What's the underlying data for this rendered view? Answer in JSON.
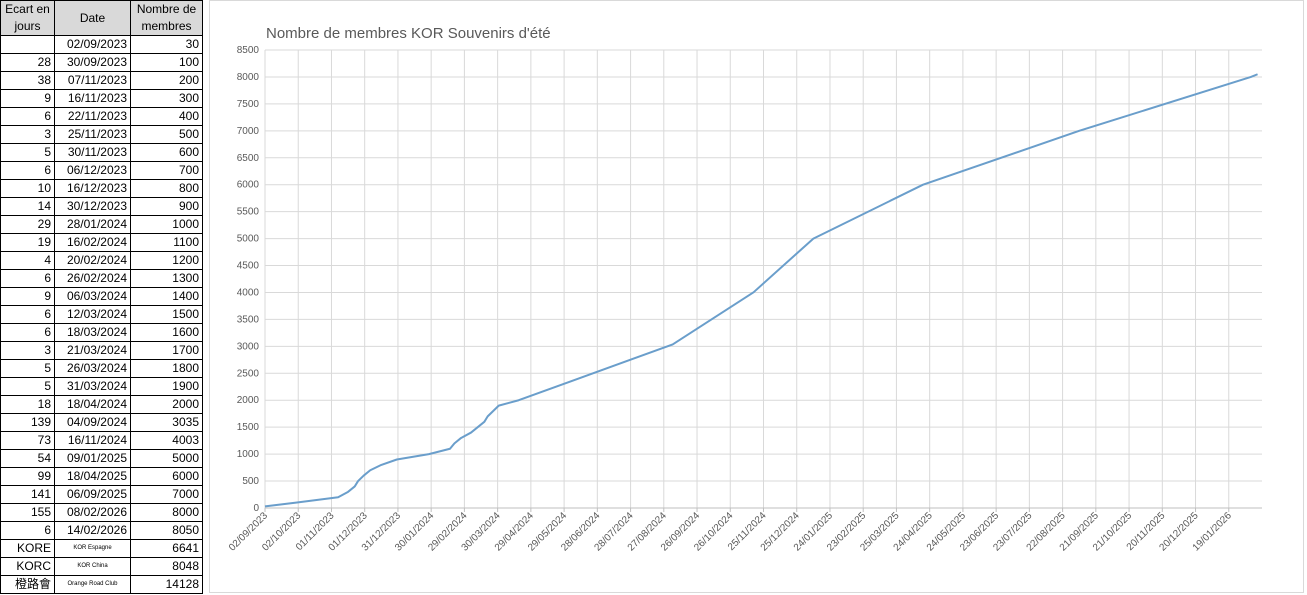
{
  "table": {
    "headers": [
      "Ecart en jours",
      "Date",
      "Nombre de membres"
    ],
    "ecart": [
      null,
      28,
      38,
      9,
      6,
      3,
      5,
      6,
      10,
      14,
      29,
      19,
      4,
      6,
      9,
      6,
      6,
      3,
      5,
      5,
      18,
      139,
      73,
      54,
      99,
      141,
      155,
      6
    ],
    "extra_rows": [
      [
        "KORE",
        "KOR Espagne",
        6641
      ],
      [
        "KORC",
        "KOR China",
        8048
      ],
      [
        "橙路會",
        "Orange Road Club",
        14128
      ]
    ]
  },
  "chart_data": {
    "type": "line",
    "title": "Nombre de membres KOR Souvenirs d'été",
    "x": [
      "02/09/2023",
      "30/09/2023",
      "07/11/2023",
      "16/11/2023",
      "22/11/2023",
      "25/11/2023",
      "30/11/2023",
      "06/12/2023",
      "16/12/2023",
      "30/12/2023",
      "28/01/2024",
      "16/02/2024",
      "20/02/2024",
      "26/02/2024",
      "06/03/2024",
      "12/03/2024",
      "18/03/2024",
      "21/03/2024",
      "26/03/2024",
      "31/03/2024",
      "18/04/2024",
      "04/09/2024",
      "16/11/2024",
      "09/01/2025",
      "18/04/2025",
      "06/09/2025",
      "08/02/2026",
      "14/02/2026"
    ],
    "values": [
      30,
      100,
      200,
      300,
      400,
      500,
      600,
      700,
      800,
      900,
      1000,
      1100,
      1200,
      1300,
      1400,
      1500,
      1600,
      1700,
      1800,
      1900,
      2000,
      3035,
      4003,
      5000,
      6000,
      7000,
      8000,
      8050
    ],
    "color": "#6a9ecb",
    "xlim": [
      "02/09/2023",
      "18/02/2026"
    ],
    "xticks": [
      "02/09/2023",
      "02/10/2023",
      "01/11/2023",
      "01/12/2023",
      "31/12/2023",
      "30/01/2024",
      "29/02/2024",
      "30/03/2024",
      "29/04/2024",
      "29/05/2024",
      "28/06/2024",
      "28/07/2024",
      "27/08/2024",
      "26/09/2024",
      "26/10/2024",
      "25/11/2024",
      "25/12/2024",
      "24/01/2025",
      "23/02/2025",
      "25/03/2025",
      "24/04/2025",
      "24/05/2025",
      "23/06/2025",
      "23/07/2025",
      "22/08/2025",
      "21/09/2025",
      "21/10/2025",
      "20/11/2025",
      "20/12/2025",
      "19/01/2026"
    ],
    "ylim": [
      0,
      8500
    ],
    "yticks": [
      0,
      500,
      1000,
      1500,
      2000,
      2500,
      3000,
      3500,
      4000,
      4500,
      5000,
      5500,
      6000,
      6500,
      7000,
      7500,
      8000,
      8500
    ],
    "grid": true
  }
}
